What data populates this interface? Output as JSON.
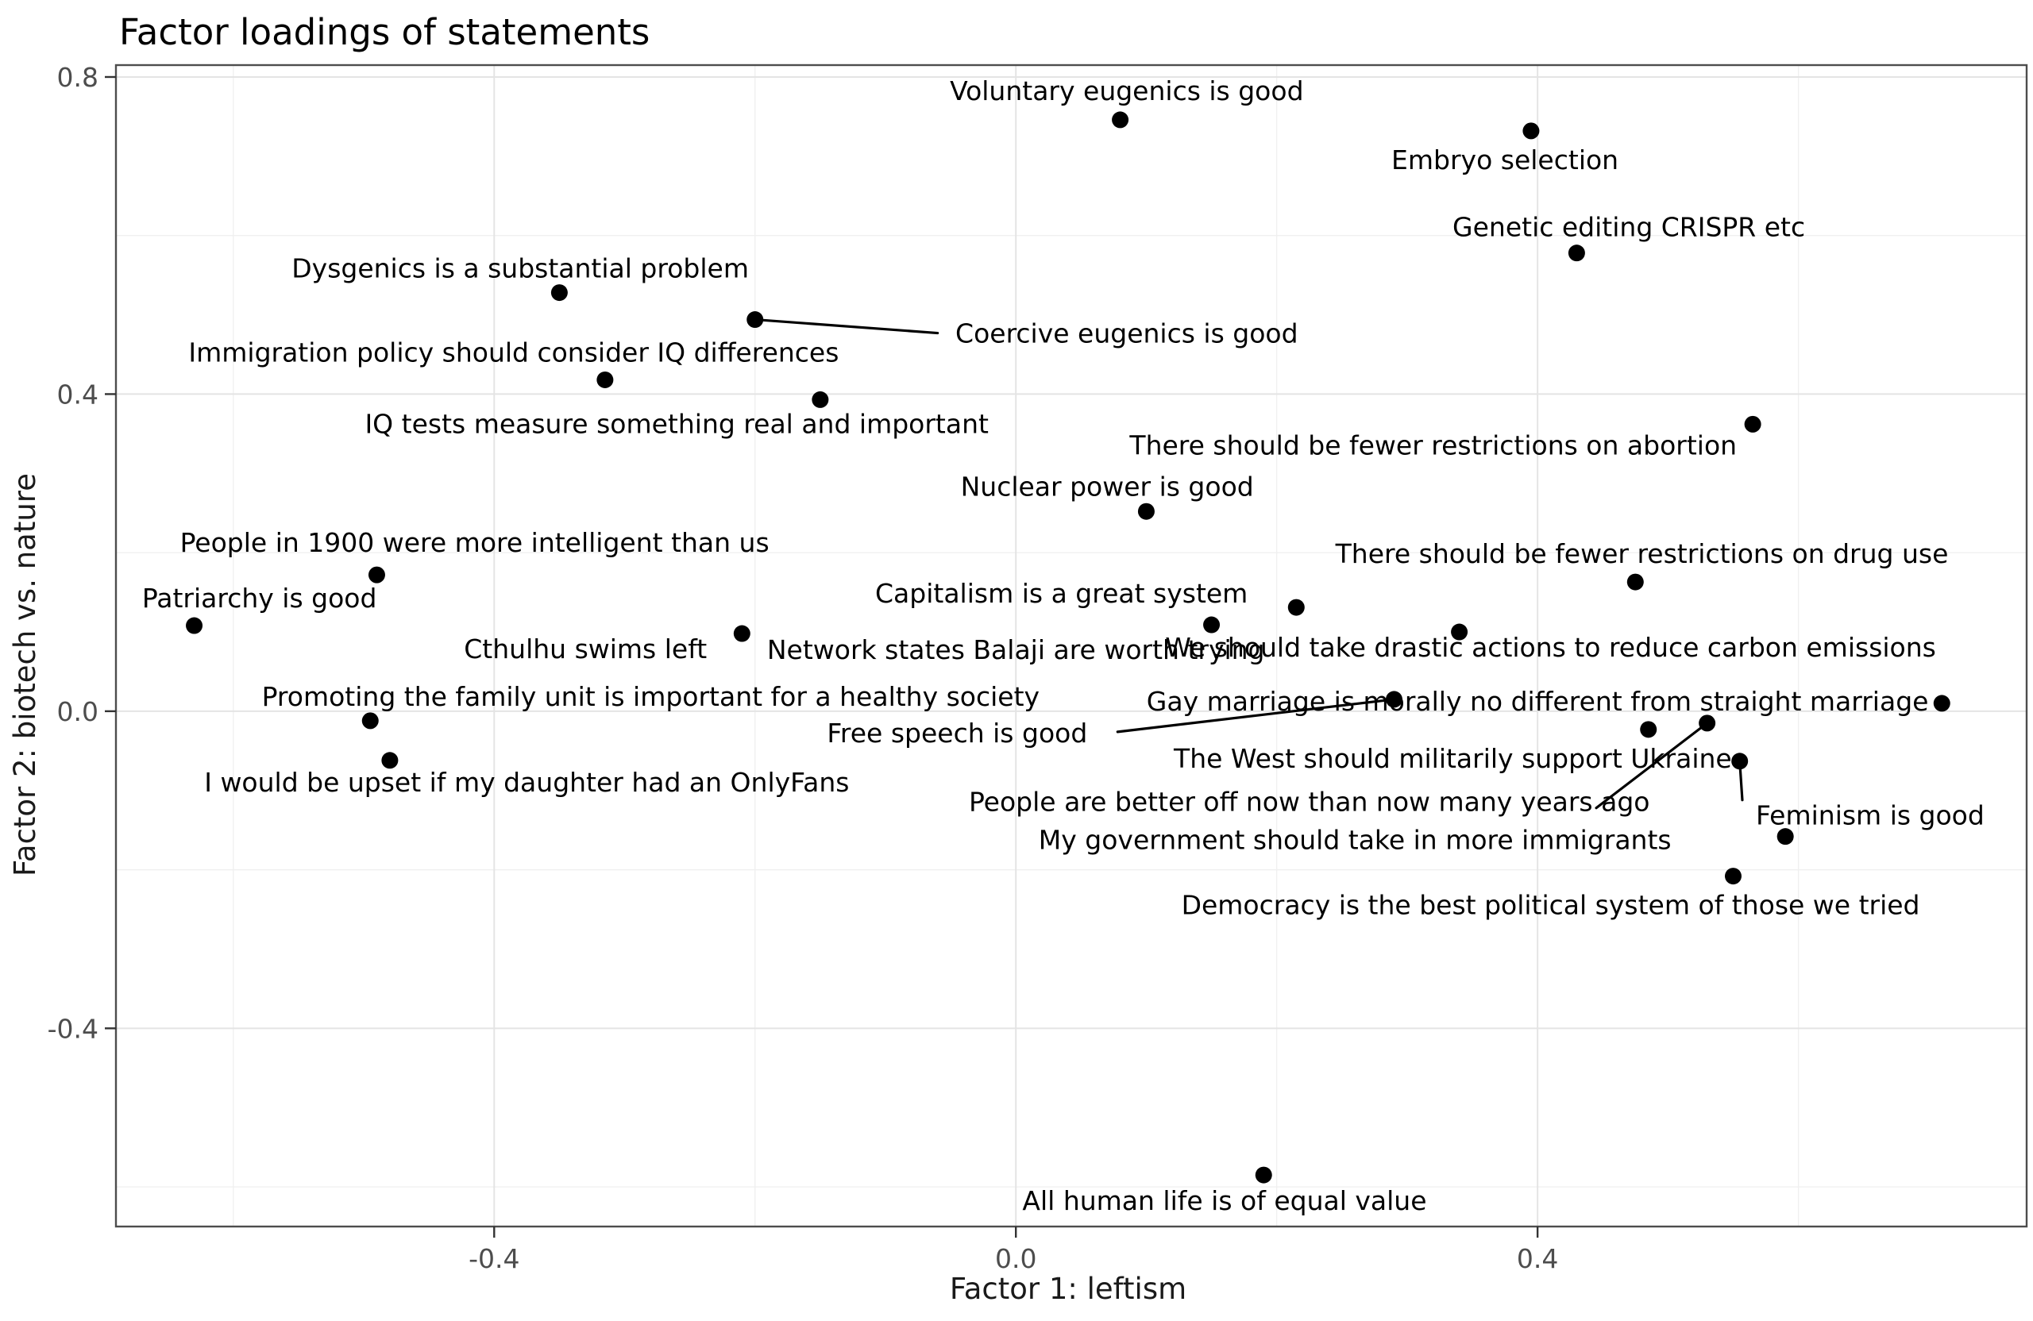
{
  "chart_data": {
    "type": "scatter",
    "title": "Factor loadings of statements",
    "xlabel": "Factor 1: leftism",
    "ylabel": "Factor 2: biotech vs. nature",
    "xlim": [
      -0.69,
      0.775
    ],
    "ylim": [
      -0.65,
      0.815
    ],
    "xticks": [
      -0.4,
      0.0,
      0.4
    ],
    "xtick_labels": [
      "-0.4",
      "0.0",
      "0.4"
    ],
    "yticks": [
      -0.4,
      0.0,
      0.4,
      0.8
    ],
    "ytick_labels": [
      "-0.4",
      "0.0",
      "0.4",
      "0.8"
    ],
    "minor_xticks": [
      -0.6,
      -0.2,
      0.2,
      0.6
    ],
    "minor_yticks": [
      -0.6,
      -0.2,
      0.2,
      0.6
    ],
    "grid": "major+minor",
    "legend": "none",
    "background": "#ffffff",
    "point_color": "#000000",
    "label_color": "#000000",
    "grid_color": "#e4e4e4",
    "minor_grid_color": "#f0f0f0",
    "border_color": "#4d4d4d",
    "tick_color": "#333333",
    "points": [
      {
        "label": "Voluntary eugenics is good",
        "x": 0.08,
        "y": 0.746,
        "lx": 0.085,
        "ly": 0.782
      },
      {
        "label": "Embryo selection",
        "x": 0.395,
        "y": 0.732,
        "lx": 0.375,
        "ly": 0.695
      },
      {
        "label": "Genetic editing CRISPR etc",
        "x": 0.43,
        "y": 0.578,
        "lx": 0.47,
        "ly": 0.61
      },
      {
        "label": "Dysgenics is a substantial problem",
        "x": -0.35,
        "y": 0.528,
        "lx": -0.38,
        "ly": 0.558
      },
      {
        "label": "Coercive eugenics is good",
        "x": -0.2,
        "y": 0.494,
        "lx": 0.085,
        "ly": 0.476,
        "leader_end": [
          -0.06,
          0.477
        ]
      },
      {
        "label": "Immigration policy should consider IQ differences",
        "x": -0.315,
        "y": 0.418,
        "lx": -0.385,
        "ly": 0.452
      },
      {
        "label": "IQ tests measure something real and important",
        "x": -0.15,
        "y": 0.393,
        "lx": -0.26,
        "ly": 0.362
      },
      {
        "label": "There should be fewer restrictions on abortion",
        "x": 0.565,
        "y": 0.362,
        "lx": 0.32,
        "ly": 0.335
      },
      {
        "label": "Nuclear power is good",
        "x": 0.1,
        "y": 0.252,
        "lx": 0.07,
        "ly": 0.283
      },
      {
        "label": "There should be fewer restrictions on drug use",
        "x": 0.475,
        "y": 0.163,
        "lx": 0.48,
        "ly": 0.198
      },
      {
        "label": "People in 1900 were more intelligent than us",
        "x": -0.49,
        "y": 0.172,
        "lx": -0.415,
        "ly": 0.212
      },
      {
        "label": "Patriarchy is good",
        "x": -0.63,
        "y": 0.108,
        "lx": -0.58,
        "ly": 0.142
      },
      {
        "label": "Capitalism is a great system",
        "x": 0.215,
        "y": 0.131,
        "lx": 0.035,
        "ly": 0.148
      },
      {
        "label": "Cthulhu swims left",
        "x": -0.21,
        "y": 0.098,
        "lx": -0.33,
        "ly": 0.078
      },
      {
        "label": "Network states Balaji are worth trying",
        "x": 0.15,
        "y": 0.109,
        "lx": 0.0,
        "ly": 0.077
      },
      {
        "label": "We should take drastic actions to reduce carbon emissions",
        "x": 0.34,
        "y": 0.1,
        "lx": 0.41,
        "ly": 0.08
      },
      {
        "label": "Promoting the family unit is important for a healthy society",
        "x": -0.495,
        "y": -0.012,
        "lx": -0.28,
        "ly": 0.018
      },
      {
        "label": "Gay marriage is morally no different from straight marriage",
        "x": 0.71,
        "y": 0.01,
        "lx": 0.4,
        "ly": 0.012
      },
      {
        "label": "Free speech is good",
        "x": 0.29,
        "y": 0.015,
        "lx": -0.045,
        "ly": -0.028,
        "leader_end": [
          0.078,
          -0.026
        ]
      },
      {
        "label": "The West should militarily support Ukraine",
        "x": 0.485,
        "y": -0.023,
        "lx": 0.335,
        "ly": -0.06
      },
      {
        "label": "I would be upset if my daughter had an OnlyFans",
        "x": -0.48,
        "y": -0.062,
        "lx": -0.375,
        "ly": -0.09
      },
      {
        "label": "People are better off now than now many years ago",
        "x": 0.53,
        "y": -0.015,
        "lx": 0.225,
        "ly": -0.115,
        "leader_end": [
          0.445,
          -0.122
        ]
      },
      {
        "label": "My government should take in more immigrants",
        "x": 0.59,
        "y": -0.158,
        "lx": 0.26,
        "ly": -0.163
      },
      {
        "label": "Feminism is good",
        "x": 0.555,
        "y": -0.063,
        "lx": 0.655,
        "ly": -0.132,
        "leader_end": [
          0.557,
          -0.112
        ]
      },
      {
        "label": "Democracy is the best political system of those we tried",
        "x": 0.55,
        "y": -0.208,
        "lx": 0.41,
        "ly": -0.245
      },
      {
        "label": "All human life is of equal value",
        "x": 0.19,
        "y": -0.585,
        "lx": 0.16,
        "ly": -0.618
      }
    ]
  }
}
